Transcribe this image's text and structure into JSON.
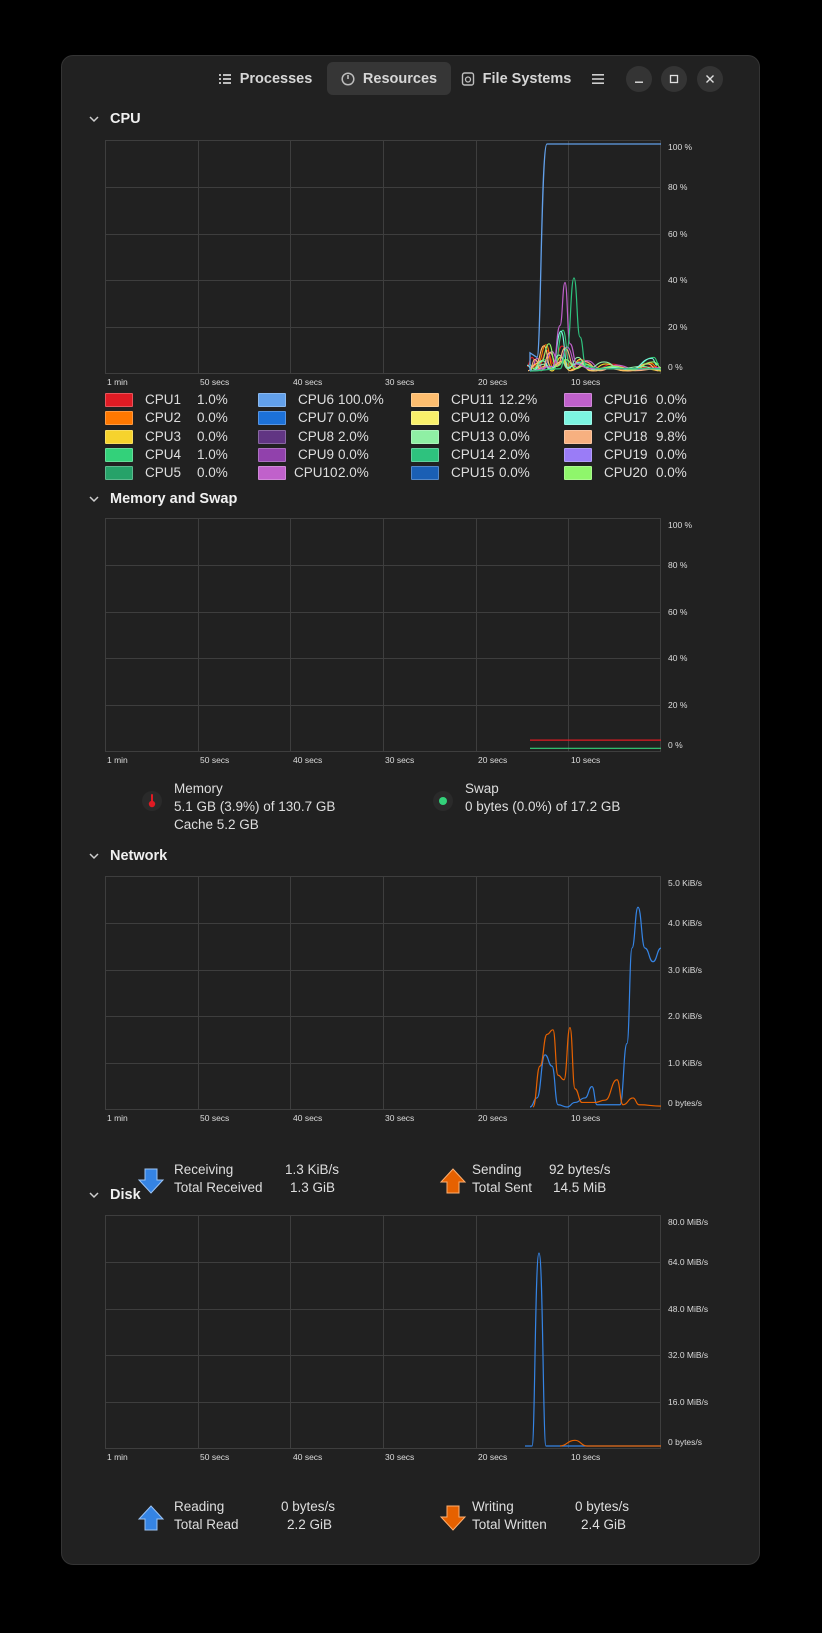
{
  "tabs": [
    {
      "label": "Processes",
      "icon": "list-icon",
      "active": false
    },
    {
      "label": "Resources",
      "icon": "gauge-icon",
      "active": true
    },
    {
      "label": "File Systems",
      "icon": "disk-icon",
      "active": false
    }
  ],
  "window_controls": {
    "menu_icon": "hamburger-menu-icon",
    "minimize_icon": "minimize-icon",
    "maximize_icon": "maximize-icon",
    "close_icon": "close-icon"
  },
  "time_labels": [
    "1 min",
    "50 secs",
    "40 secs",
    "30 secs",
    "20 secs",
    "10 secs"
  ],
  "cpu": {
    "title": "CPU",
    "y_labels": [
      "100 %",
      "80 %",
      "60 %",
      "40 %",
      "20 %",
      "0 %"
    ],
    "cores": [
      {
        "name": "CPU1",
        "value": "1.0%",
        "color": "#e01b24"
      },
      {
        "name": "CPU2",
        "value": "0.0%",
        "color": "#ff7800"
      },
      {
        "name": "CPU3",
        "value": "0.0%",
        "color": "#f6d32d"
      },
      {
        "name": "CPU4",
        "value": "1.0%",
        "color": "#33d17a"
      },
      {
        "name": "CPU5",
        "value": "0.0%",
        "color": "#26a269"
      },
      {
        "name": "CPU6",
        "value": "100.0%",
        "color": "#62a0ea"
      },
      {
        "name": "CPU7",
        "value": "0.0%",
        "color": "#1c71d8"
      },
      {
        "name": "CPU8",
        "value": "2.0%",
        "color": "#613583"
      },
      {
        "name": "CPU9",
        "value": "0.0%",
        "color": "#9141ac"
      },
      {
        "name": "CPU10",
        "value": "2.0%",
        "color": "#c061cb"
      },
      {
        "name": "CPU11",
        "value": "12.2%",
        "color": "#ffbe6f"
      },
      {
        "name": "CPU12",
        "value": "0.0%",
        "color": "#f9f06b"
      },
      {
        "name": "CPU13",
        "value": "0.0%",
        "color": "#8ff0a4"
      },
      {
        "name": "CPU14",
        "value": "2.0%",
        "color": "#2ec27e"
      },
      {
        "name": "CPU15",
        "value": "0.0%",
        "color": "#1a5fb4"
      },
      {
        "name": "CPU16",
        "value": "0.0%",
        "color": "#c061cb"
      },
      {
        "name": "CPU17",
        "value": "2.0%",
        "color": "#7cf5e1"
      },
      {
        "name": "CPU18",
        "value": "9.8%",
        "color": "#f7b080"
      },
      {
        "name": "CPU19",
        "value": "0.0%",
        "color": "#9a7cf7"
      },
      {
        "name": "CPU20",
        "value": "0.0%",
        "color": "#8ff66b"
      }
    ]
  },
  "memory": {
    "title": "Memory and Swap",
    "y_labels": [
      "100 %",
      "80 %",
      "60 %",
      "40 %",
      "20 %",
      "0 %"
    ],
    "memory_label": "Memory",
    "memory_used": "5.1 GB (3.9%) of 130.7 GB",
    "memory_cache": "Cache 5.2 GB",
    "memory_color": "#e01b24",
    "swap_label": "Swap",
    "swap_used": "0 bytes (0.0%) of 17.2 GB",
    "swap_color": "#33d17a"
  },
  "network": {
    "title": "Network",
    "y_labels": [
      "5.0 KiB/s",
      "4.0 KiB/s",
      "3.0 KiB/s",
      "2.0 KiB/s",
      "1.0 KiB/s",
      "0 bytes/s"
    ],
    "receiving_label": "Receiving",
    "receiving_value": "1.3 KiB/s",
    "total_received_label": "Total Received",
    "total_received_value": "1.3 GiB",
    "receiving_color": "#3584e4",
    "sending_label": "Sending",
    "sending_value": "92 bytes/s",
    "total_sent_label": "Total Sent",
    "total_sent_value": "14.5 MiB",
    "sending_color": "#e66100"
  },
  "disk": {
    "title": "Disk",
    "y_labels": [
      "80.0 MiB/s",
      "64.0 MiB/s",
      "48.0 MiB/s",
      "32.0 MiB/s",
      "16.0 MiB/s",
      "0 bytes/s"
    ],
    "reading_label": "Reading",
    "reading_value": "0 bytes/s",
    "total_read_label": "Total Read",
    "total_read_value": "2.2 GiB",
    "reading_color": "#3584e4",
    "writing_label": "Writing",
    "writing_value": "0 bytes/s",
    "total_written_label": "Total Written",
    "total_written_value": "2.4 GiB",
    "writing_color": "#e66100"
  }
}
